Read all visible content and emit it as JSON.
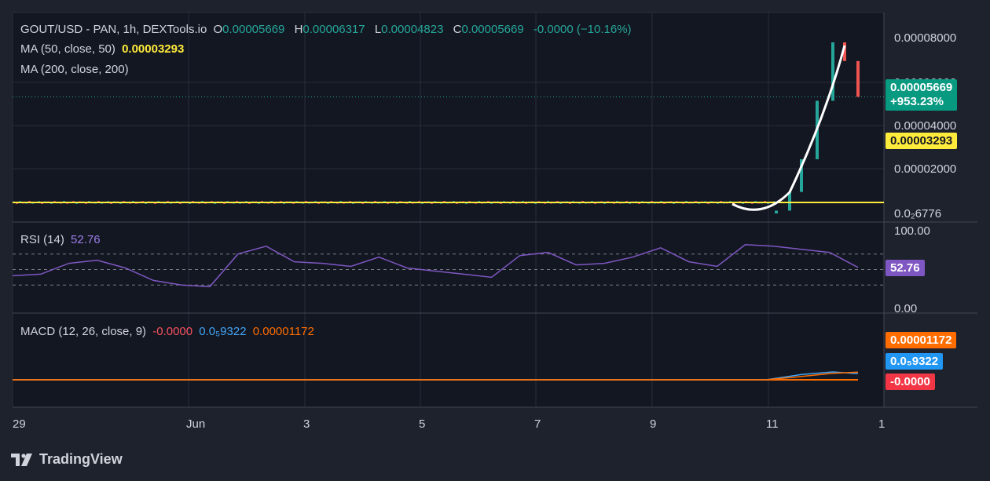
{
  "main_legend": {
    "symbol": "GOUT/USD - PAN, 1h, DEXTools.io",
    "o_label": "O",
    "o_value": "0.00005669",
    "h_label": "H",
    "h_value": "0.00006317",
    "l_label": "L",
    "l_value": "0.00004823",
    "c_label": "C",
    "c_value": "0.00005669",
    "change": "-0.0000 (−10.16%)",
    "ma50_label": "MA (50, close, 50)",
    "ma50_value": "0.00003293",
    "ma200_label": "MA (200, close, 200)"
  },
  "rsi_legend": {
    "label": "RSI (14)",
    "value": "52.76"
  },
  "macd_legend": {
    "label": "MACD (12, 26, close, 9)",
    "v1": "-0.0000",
    "v2": "0.0₅9322",
    "v3": "0.00001172"
  },
  "price_axis": {
    "ticks": [
      "0.00008000",
      "0.00006000",
      "0.00004000",
      "0.00002000",
      "0.0₂6776"
    ],
    "current_price": "0.00005669",
    "current_change": "+953.23%",
    "ma_tag": "0.00003293"
  },
  "rsi_axis": {
    "ticks": [
      "100.00",
      "0.00"
    ],
    "current": "52.76"
  },
  "macd_axis": {
    "tag1": "0.00001172",
    "tag2": "0.0₅9322",
    "tag3": "-0.0000"
  },
  "time_axis": {
    "labels": [
      "29",
      "Jun",
      "3",
      "5",
      "7",
      "9",
      "11",
      "1"
    ]
  },
  "brand": {
    "name": "TradingView"
  },
  "colors": {
    "background": "#1e222d",
    "up": "#26a69a",
    "down": "#ef5350",
    "ma50": "#ffeb3b",
    "rsi": "#7e57c2",
    "macd_signal": "#ff6d00",
    "macd_line": "#42a5f5"
  },
  "chart_data": [
    {
      "type": "line",
      "title": "GOUT/USD - PAN, 1h, DEXTools.io",
      "x": [
        "29",
        "Jun",
        "3",
        "5",
        "7",
        "9",
        "11",
        "12",
        "12.5"
      ],
      "series": [
        {
          "name": "MA (50, close, 50)",
          "values": [
            6.8e-06,
            6.8e-06,
            6.8e-06,
            6.8e-06,
            6.8e-06,
            6.8e-06,
            6.8e-06,
            2.5e-05,
            3.293e-05
          ]
        }
      ],
      "candles_approx": [
        {
          "x": "11",
          "close": 8e-06
        },
        {
          "x": "11.3",
          "close": 1.6e-05
        },
        {
          "x": "11.6",
          "close": 3e-05
        },
        {
          "x": "11.9",
          "close": 5.5e-05
        },
        {
          "x": "12.1",
          "close": 8e-05
        },
        {
          "x": "12.3",
          "close": 7.2e-05
        },
        {
          "x": "12.5",
          "close": 5.669e-05
        }
      ],
      "ylim": [
        6.8e-06,
        8.2e-05
      ],
      "grid": true
    },
    {
      "type": "line",
      "title": "RSI (14)",
      "series": [
        {
          "name": "RSI (14)",
          "values": [
            42,
            44,
            58,
            62,
            52,
            36,
            30,
            28,
            70,
            80,
            60,
            58,
            54,
            66,
            52,
            48,
            44,
            40,
            68,
            72,
            56,
            58,
            66,
            78,
            60,
            54,
            82,
            80,
            76,
            72,
            52.76
          ]
        }
      ],
      "ylim": [
        0,
        100
      ]
    },
    {
      "type": "line",
      "title": "MACD (12, 26, close, 9)",
      "series": [
        {
          "name": "MACD",
          "values": [
            0,
            0,
            0,
            0,
            0,
            0,
            0,
            8e-06,
            1.2e-05,
            9.3e-06
          ]
        },
        {
          "name": "Signal",
          "values": [
            0,
            0,
            0,
            0,
            0,
            0,
            0,
            5e-06,
            1e-05,
            1.172e-05
          ]
        }
      ]
    }
  ]
}
